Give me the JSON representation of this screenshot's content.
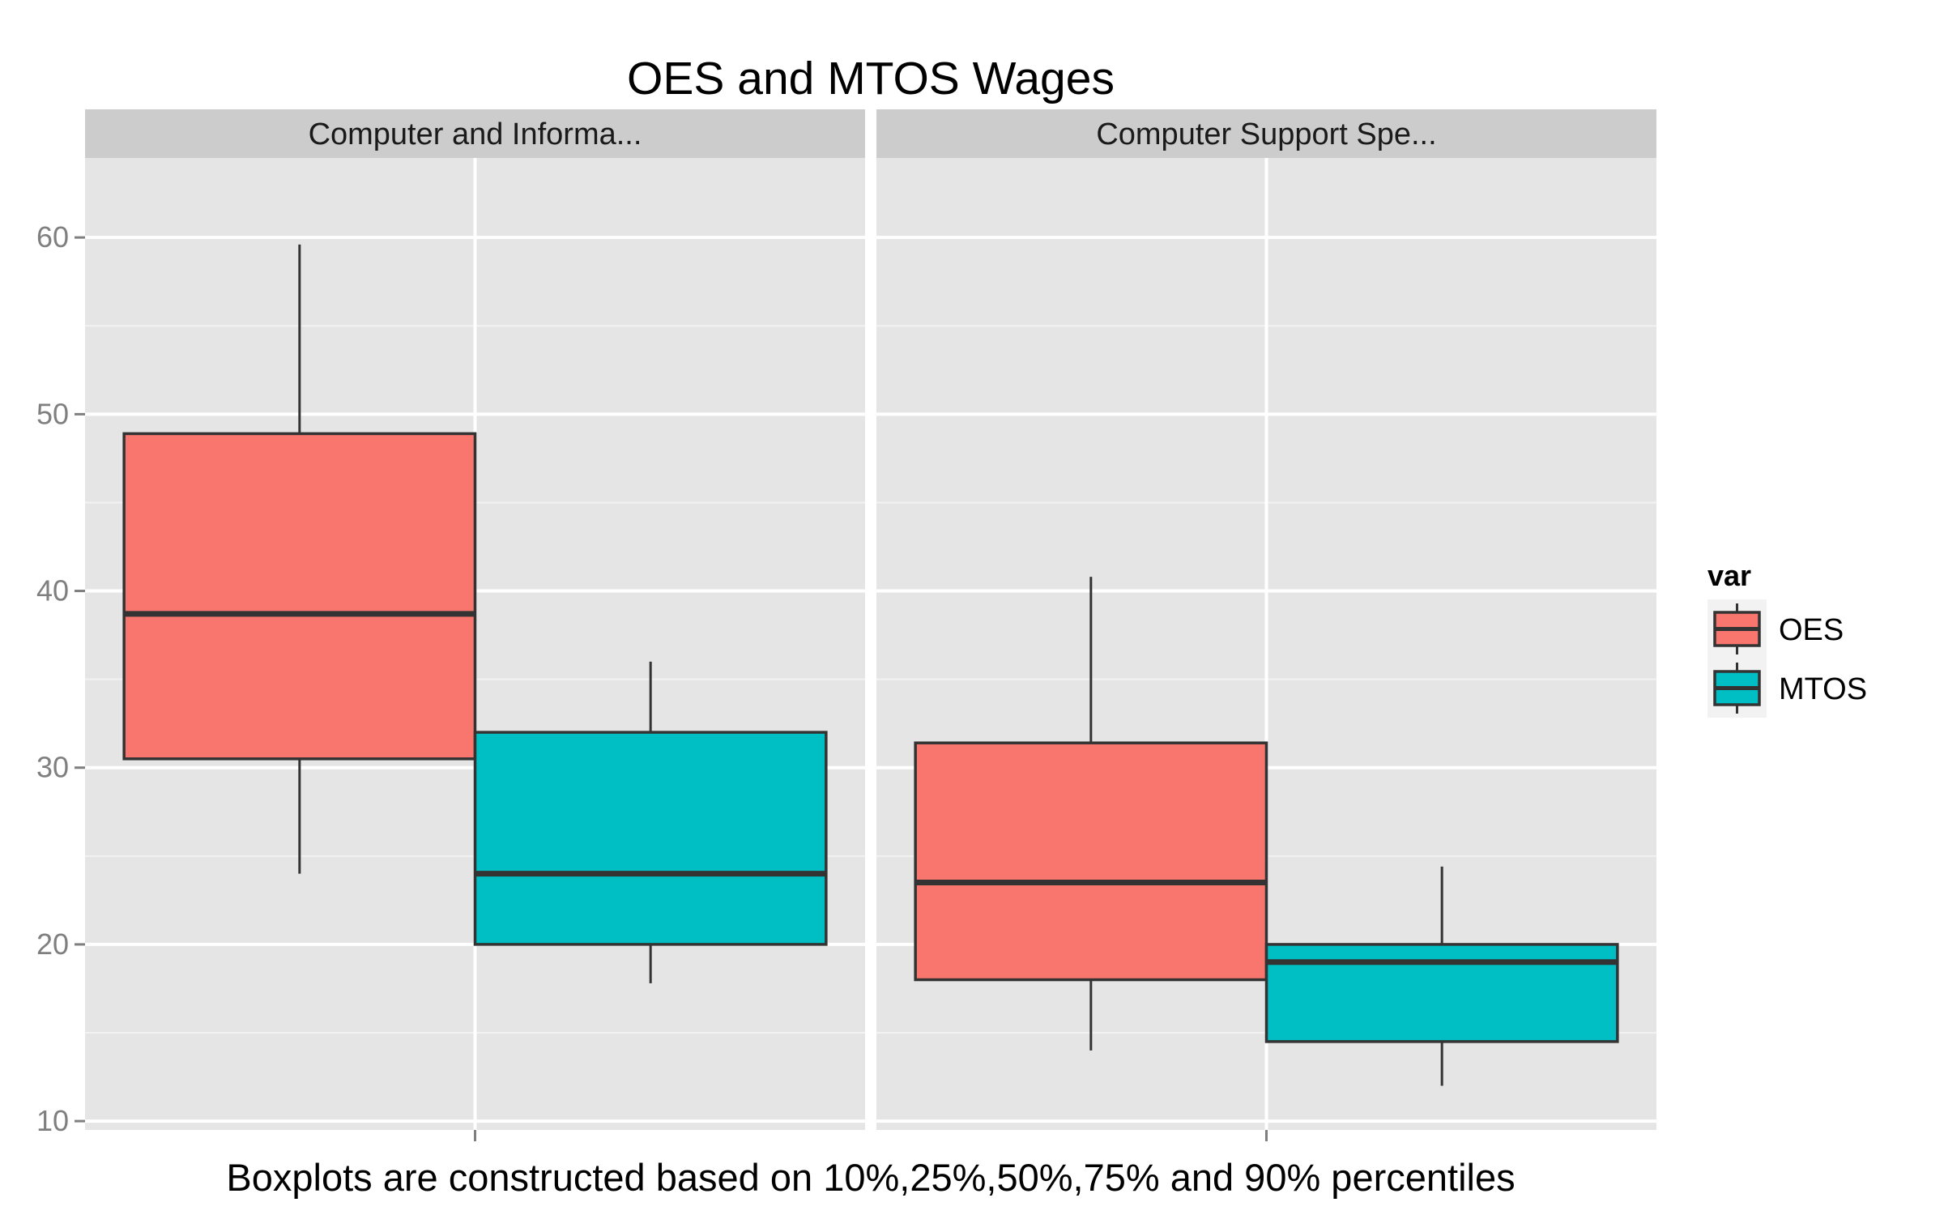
{
  "chart_data": {
    "type": "boxplot",
    "title": "OES and MTOS Wages",
    "caption": "Boxplots are constructed based on 10%,25%,50%,75% and 90% percentiles",
    "ylim": [
      9.5,
      64.5
    ],
    "y_ticks": [
      10,
      20,
      30,
      40,
      50,
      60
    ],
    "grid": true,
    "legend": {
      "title": "var",
      "position": "right",
      "items": [
        {
          "name": "OES",
          "color": "#F8766D"
        },
        {
          "name": "MTOS",
          "color": "#00BFC4"
        }
      ]
    },
    "panels": [
      {
        "label": "Computer and Informa...",
        "boxes": [
          {
            "series": "OES",
            "p10": 24.0,
            "p25": 30.5,
            "p50": 38.7,
            "p75": 48.9,
            "p90": 59.6
          },
          {
            "series": "MTOS",
            "p10": 17.8,
            "p25": 20.0,
            "p50": 24.0,
            "p75": 32.0,
            "p90": 36.0
          }
        ]
      },
      {
        "label": "Computer Support Spe...",
        "boxes": [
          {
            "series": "OES",
            "p10": 14.0,
            "p25": 18.0,
            "p50": 23.5,
            "p75": 31.4,
            "p90": 40.8
          },
          {
            "series": "MTOS",
            "p10": 12.0,
            "p25": 14.5,
            "p50": 19.0,
            "p75": 20.0,
            "p90": 24.4
          }
        ]
      }
    ]
  }
}
